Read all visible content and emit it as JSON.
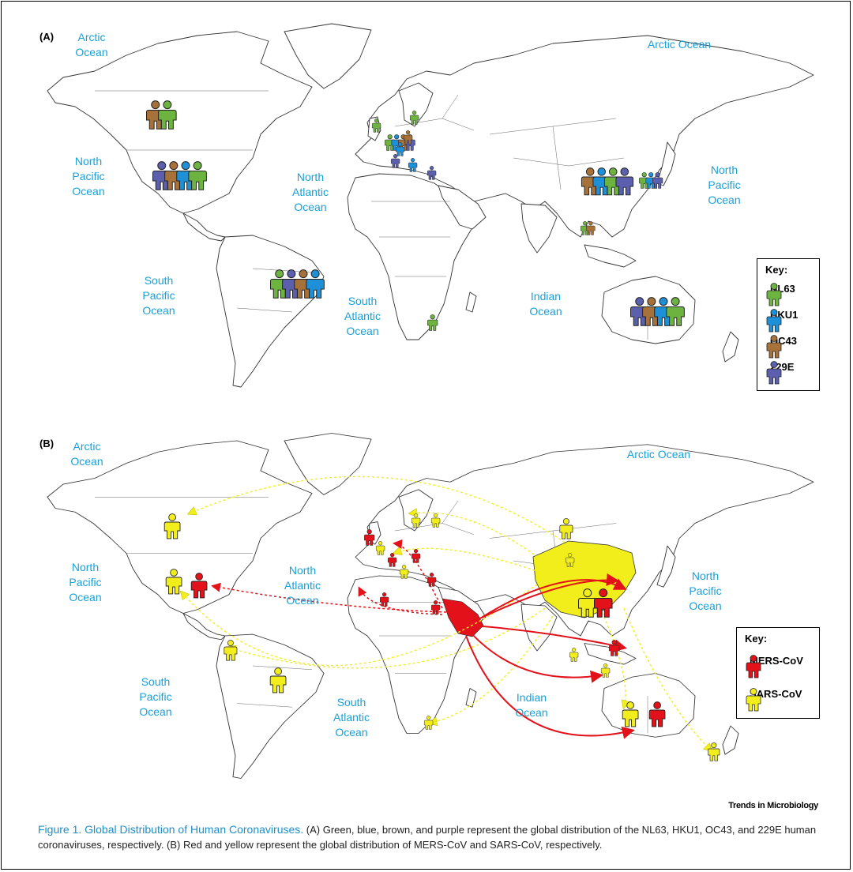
{
  "colors": {
    "NL63": "#6db33f",
    "HKU1": "#1e90d8",
    "OC43": "#a6723a",
    "229E": "#5b5fad",
    "MERS-CoV": "#e3121a",
    "SARS-CoV": "#f2ee1c",
    "ocean_label": "#1aa0d8",
    "land_outline": "#333333"
  },
  "panel_a": {
    "label": "(A)",
    "oceans": [
      {
        "id": "arctic-w",
        "text": "Arctic\nOcean"
      },
      {
        "id": "arctic-e",
        "text": "Arctic Ocean"
      },
      {
        "id": "n-pacific-w",
        "text": "North\nPacific\nOcean"
      },
      {
        "id": "n-atlantic",
        "text": "North\nAtlantic\nOcean"
      },
      {
        "id": "s-pacific",
        "text": "South\nPacific\nOcean"
      },
      {
        "id": "s-atlantic",
        "text": "South\nAtlantic\nOcean"
      },
      {
        "id": "indian",
        "text": "Indian\nOcean"
      },
      {
        "id": "n-pacific-e",
        "text": "North\nPacific\nOcean"
      }
    ],
    "key": {
      "title": "Key:",
      "items": [
        {
          "label": "NL63",
          "color_ref": "NL63"
        },
        {
          "label": "HKU1",
          "color_ref": "HKU1"
        },
        {
          "label": "OC43",
          "color_ref": "OC43"
        },
        {
          "label": "229E",
          "color_ref": "229E"
        }
      ]
    },
    "distribution": [
      {
        "region": "Canada",
        "viruses": [
          "OC43",
          "NL63"
        ]
      },
      {
        "region": "United States",
        "viruses": [
          "229E",
          "OC43",
          "HKU1",
          "NL63"
        ]
      },
      {
        "region": "Brazil",
        "viruses": [
          "NL63",
          "229E",
          "OC43",
          "HKU1"
        ]
      },
      {
        "region": "Europe",
        "viruses": [
          "NL63",
          "HKU1",
          "OC43",
          "229E"
        ]
      },
      {
        "region": "South Africa",
        "viruses": [
          "NL63"
        ]
      },
      {
        "region": "China",
        "viruses": [
          "OC43",
          "HKU1",
          "NL63",
          "229E"
        ]
      },
      {
        "region": "Japan / Korea",
        "viruses": [
          "NL63",
          "HKU1",
          "229E"
        ]
      },
      {
        "region": "Southeast Asia",
        "viruses": [
          "NL63",
          "OC43"
        ]
      },
      {
        "region": "Australia",
        "viruses": [
          "229E",
          "OC43",
          "HKU1",
          "NL63"
        ]
      }
    ]
  },
  "panel_b": {
    "label": "(B)",
    "oceans": [
      {
        "id": "arctic-w",
        "text": "Arctic\nOcean"
      },
      {
        "id": "arctic-e",
        "text": "Arctic Ocean"
      },
      {
        "id": "n-pacific-w",
        "text": "North\nPacific\nOcean"
      },
      {
        "id": "n-atlantic",
        "text": "North\nAtlantic\nOcean"
      },
      {
        "id": "s-pacific",
        "text": "South\nPacific\nOcean"
      },
      {
        "id": "s-atlantic",
        "text": "South\nAtlantic\nOcean"
      },
      {
        "id": "indian",
        "text": "Indian\nOcean"
      },
      {
        "id": "n-pacific-e",
        "text": "North\nPacific\nOcean"
      }
    ],
    "key": {
      "title": "Key:",
      "items": [
        {
          "label": "MERS-CoV",
          "color_ref": "MERS-CoV"
        },
        {
          "label": "SARS-CoV",
          "color_ref": "SARS-CoV"
        }
      ]
    }
  },
  "publisher": "Trends in Microbiology",
  "caption": {
    "title": "Figure 1. Global Distribution of Human Coronaviruses.",
    "text": " (A) Green, blue, brown, and purple represent the global distribution of the NL63, HKU1, OC43, and 229E human coronaviruses, respectively. (B) Red and yellow represent the global distribution of MERS-CoV and SARS-CoV, respectively."
  }
}
